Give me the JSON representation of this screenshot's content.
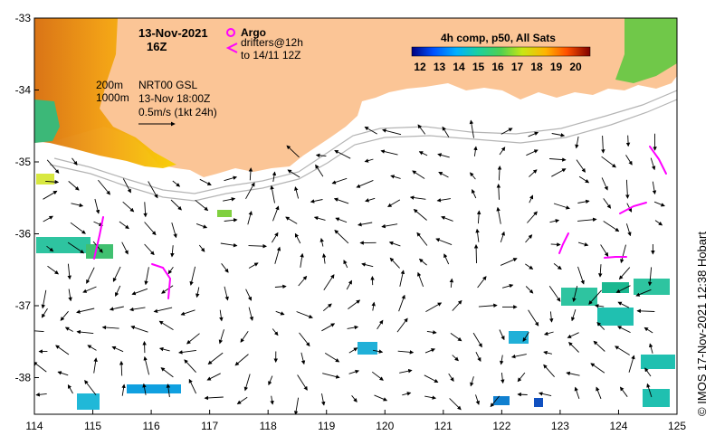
{
  "map": {
    "date": "13-Nov-2021",
    "hour": "16Z",
    "argo_label": "Argo",
    "drifters_label": "drifters@12h",
    "drifters_range": "to 14/11 12Z",
    "depth_200": "200m",
    "depth_1000": "1000m",
    "product": "NRT00 GSL",
    "valid_time": "13-Nov 18:00Z",
    "arrow_scale": "0.5m/s (1kt 24h)",
    "colorbar_title": "4h comp, p50, All Sats",
    "colorbar_ticks": [
      "12",
      "13",
      "14",
      "15",
      "16",
      "17",
      "18",
      "19",
      "20"
    ],
    "credit": "© IMOS 17-Nov-2021 12:38 Hobart",
    "x_ticks": [
      "114",
      "115",
      "116",
      "117",
      "118",
      "119",
      "120",
      "121",
      "122",
      "123",
      "124",
      "125"
    ],
    "y_ticks": [
      "-33",
      "-34",
      "-35",
      "-36",
      "-37",
      "-38"
    ],
    "colors": {
      "land": "#fbc596",
      "drifter": "#ff00ff",
      "argo": "#ff00ff",
      "isobath": "#b4b4b4"
    }
  }
}
